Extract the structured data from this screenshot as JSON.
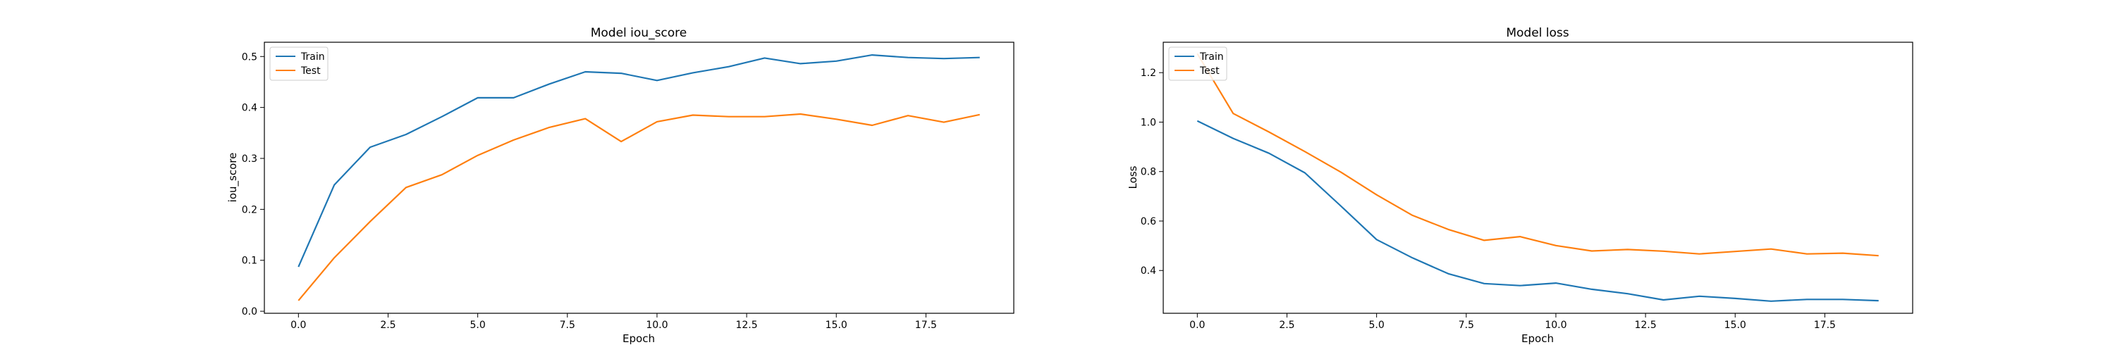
{
  "chart_data": [
    {
      "type": "line",
      "title": "Model iou_score",
      "xlabel": "Epoch",
      "ylabel": "iou_score",
      "xlim": [
        -0.95,
        19.95
      ],
      "ylim": [
        -0.004,
        0.528
      ],
      "xticks": [
        0.0,
        2.5,
        5.0,
        7.5,
        10.0,
        12.5,
        15.0,
        17.5
      ],
      "xtick_labels": [
        "0.0",
        "2.5",
        "5.0",
        "7.5",
        "10.0",
        "12.5",
        "15.0",
        "17.5"
      ],
      "yticks": [
        0.0,
        0.1,
        0.2,
        0.3,
        0.4,
        0.5
      ],
      "ytick_labels": [
        "0.0",
        "0.1",
        "0.2",
        "0.3",
        "0.4",
        "0.5"
      ],
      "grid": false,
      "legend": "top-left",
      "x": [
        0,
        1,
        2,
        3,
        4,
        5,
        6,
        7,
        8,
        9,
        10,
        11,
        12,
        13,
        14,
        15,
        16,
        17,
        18,
        19
      ],
      "series": [
        {
          "name": "Train",
          "color": "#1f77b4",
          "values": [
            0.087,
            0.248,
            0.322,
            0.347,
            0.382,
            0.419,
            0.419,
            0.446,
            0.47,
            0.467,
            0.453,
            0.468,
            0.48,
            0.497,
            0.486,
            0.491,
            0.503,
            0.498,
            0.496,
            0.498
          ]
        },
        {
          "name": "Test",
          "color": "#ff7f0e",
          "values": [
            0.021,
            0.105,
            0.176,
            0.243,
            0.268,
            0.306,
            0.336,
            0.361,
            0.378,
            0.333,
            0.372,
            0.385,
            0.382,
            0.382,
            0.387,
            0.377,
            0.365,
            0.384,
            0.371,
            0.386
          ]
        }
      ]
    },
    {
      "type": "line",
      "title": "Model loss",
      "xlabel": "Epoch",
      "ylabel": "Loss",
      "xlim": [
        -0.95,
        19.95
      ],
      "ylim": [
        0.227,
        1.323
      ],
      "xticks": [
        0.0,
        2.5,
        5.0,
        7.5,
        10.0,
        12.5,
        15.0,
        17.5
      ],
      "xtick_labels": [
        "0.0",
        "2.5",
        "5.0",
        "7.5",
        "10.0",
        "12.5",
        "15.0",
        "17.5"
      ],
      "yticks": [
        0.4,
        0.6,
        0.8,
        1.0,
        1.2
      ],
      "ytick_labels": [
        "0.4",
        "0.6",
        "0.8",
        "1.0",
        "1.2"
      ],
      "grid": false,
      "legend": "top-left",
      "x": [
        0,
        1,
        2,
        3,
        4,
        5,
        6,
        7,
        8,
        9,
        10,
        11,
        12,
        13,
        14,
        15,
        16,
        17,
        18,
        19
      ],
      "series": [
        {
          "name": "Train",
          "color": "#1f77b4",
          "values": [
            1.005,
            0.934,
            0.874,
            0.795,
            0.661,
            0.525,
            0.451,
            0.387,
            0.347,
            0.339,
            0.349,
            0.324,
            0.306,
            0.281,
            0.296,
            0.287,
            0.276,
            0.283,
            0.283,
            0.278
          ]
        },
        {
          "name": "Test",
          "color": "#ff7f0e",
          "values": [
            1.277,
            1.035,
            0.96,
            0.881,
            0.798,
            0.706,
            0.623,
            0.566,
            0.522,
            0.537,
            0.501,
            0.479,
            0.485,
            0.478,
            0.467,
            0.477,
            0.487,
            0.467,
            0.47,
            0.46
          ]
        }
      ]
    }
  ]
}
